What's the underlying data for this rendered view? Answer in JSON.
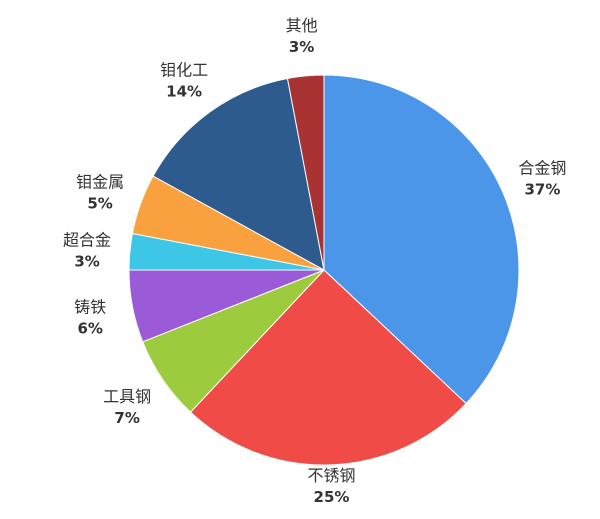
{
  "chart_data": {
    "type": "pie",
    "start": "top",
    "direction": "clockwise",
    "slices": [
      {
        "label": "合金钢",
        "value": 37,
        "display": "37%",
        "color": "#4b96e8"
      },
      {
        "label": "不锈钢",
        "value": 25,
        "display": "25%",
        "color": "#f04b46"
      },
      {
        "label": "工具钢",
        "value": 7,
        "display": "7%",
        "color": "#9dcb3e"
      },
      {
        "label": "铸铁",
        "value": 6,
        "display": "6%",
        "color": "#9b5bd8"
      },
      {
        "label": "超合金",
        "value": 3,
        "display": "3%",
        "color": "#3ec6e6"
      },
      {
        "label": "钼金属",
        "value": 5,
        "display": "5%",
        "color": "#f9a13f"
      },
      {
        "label": "钼化工",
        "value": 14,
        "display": "14%",
        "color": "#2d5b8e"
      },
      {
        "label": "其他",
        "value": 3,
        "display": "3%",
        "color": "#a93333"
      }
    ]
  }
}
